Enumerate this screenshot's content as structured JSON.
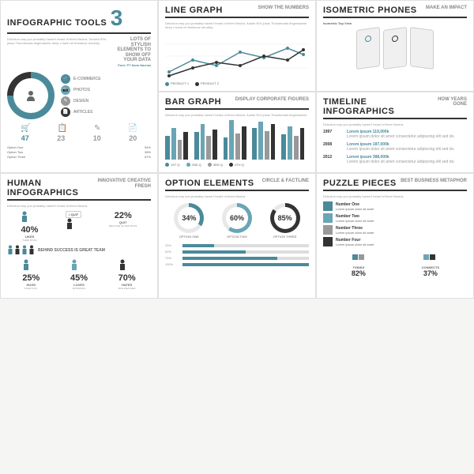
{
  "tools": {
    "title": "INFOGRAPHIC TOOLS",
    "num": "3",
    "sub": "LOTS OF STYLISH ELEMENTS TO SHOW OFF YOUR DATA",
    "font": "Font: PT Sans Narrow",
    "cats": [
      {
        "label": "E-COMMERCE",
        "color": "#4a8a9a"
      },
      {
        "label": "PHOTOS",
        "color": "#6aa5b5"
      },
      {
        "label": "DESIGN",
        "color": "#999"
      },
      {
        "label": "ARTICLES",
        "color": "#333"
      }
    ],
    "donut": {
      "seg1": 75,
      "color1": "#4a8a9a",
      "color2": "#333"
    },
    "nums": [
      "47",
      "23",
      "10",
      "20"
    ],
    "opts": [
      {
        "l": "Option One",
        "v": "54%"
      },
      {
        "l": "Option Two",
        "v": "38%"
      },
      {
        "l": "Option Three",
        "v": "87%"
      }
    ]
  },
  "line": {
    "title": "LINE GRAPH",
    "sub": "SHOW THE NUMBERS",
    "s1": {
      "label": "PRODUCT 1",
      "color": "#4a8a9a",
      "pts": [
        10,
        25,
        18,
        35,
        28,
        40,
        32
      ]
    },
    "s2": {
      "label": "PRODUCT 2",
      "color": "#333",
      "pts": [
        5,
        15,
        22,
        18,
        30,
        25,
        38
      ]
    },
    "grid": "#e8e8e8"
  },
  "bar": {
    "title": "BAR GRAPH",
    "sub": "DISPLAY CORPORATE FIGURES",
    "quarters": [
      "1ST Q",
      "2ND Q",
      "3RD Q",
      "4TH Q"
    ],
    "colors": [
      "#4a8a9a",
      "#6aa5b5",
      "#999",
      "#333"
    ],
    "groups": [
      [
        30,
        40,
        25,
        35
      ],
      [
        35,
        45,
        30,
        38
      ],
      [
        28,
        50,
        33,
        42
      ],
      [
        40,
        48,
        36,
        45
      ],
      [
        32,
        42,
        30,
        40
      ]
    ]
  },
  "iso": {
    "title": "ISOMETRIC PHONES",
    "sub": "MAKE AN IMPACT",
    "cap": "Isometric Top View"
  },
  "tl": {
    "title": "TIMELINE INFOGRAPHICS",
    "sub": "HOW YEARS GONE",
    "rows": [
      {
        "y": "1997",
        "v": "119,000k",
        "t": "Lorem ipsum"
      },
      {
        "y": "2008",
        "v": "187,000k",
        "t": "Lorem ipsum"
      },
      {
        "y": "2012",
        "v": "388,000k",
        "t": "Lorem ipsum"
      }
    ]
  },
  "human": {
    "title": "HUMAN INFOGRAPHICS",
    "sub": "INNOVATIVE CREATIVE FRESH",
    "top": [
      {
        "p": "40%",
        "l1": "LIKES",
        "l2": "THEIR BOSS",
        "c": "#4a8a9a"
      },
      {
        "p": "22%",
        "l1": "QUIT",
        "l2": "BECAUSE OF BAD BOSS",
        "c": "#333"
      }
    ],
    "quit": "I QUIT",
    "behind": "BEHIND SUCCESS IS GREAT TEAM",
    "bot": [
      {
        "p": "25%",
        "l1": "HUGS",
        "l2": "EVERYDAY"
      },
      {
        "p": "45%",
        "l1": "LOVES",
        "l2": "MORNINGS"
      },
      {
        "p": "70%",
        "l1": "HATES",
        "l2": "BAD WEATHER"
      }
    ]
  },
  "opt": {
    "title": "OPTION ELEMENTS",
    "sub": "CIRCLE & FACTLINE",
    "circs": [
      {
        "p": 34,
        "l": "OPTION ONE",
        "c": "#4a8a9a"
      },
      {
        "p": 60,
        "l": "OPTION TWO",
        "c": "#6aa5b5"
      },
      {
        "p": 85,
        "l": "OPTION THREE",
        "c": "#333"
      }
    ],
    "facts": [
      {
        "v": 25
      },
      {
        "v": 50
      },
      {
        "v": 75
      },
      {
        "v": 100
      }
    ]
  },
  "pz": {
    "title": "PUZZLE PIECES",
    "sub": "BEST BUSINESS METAPHOR",
    "items": [
      {
        "t": "Number One",
        "c": "#4a8a9a"
      },
      {
        "t": "Number Two",
        "c": "#6aa5b5"
      },
      {
        "t": "Number Three",
        "c": "#999"
      },
      {
        "t": "Number Four",
        "c": "#333"
      }
    ],
    "bottom": [
      {
        "l": "THINKS",
        "v": "82%"
      },
      {
        "l": "CONNECTS",
        "v": "37%"
      }
    ]
  }
}
